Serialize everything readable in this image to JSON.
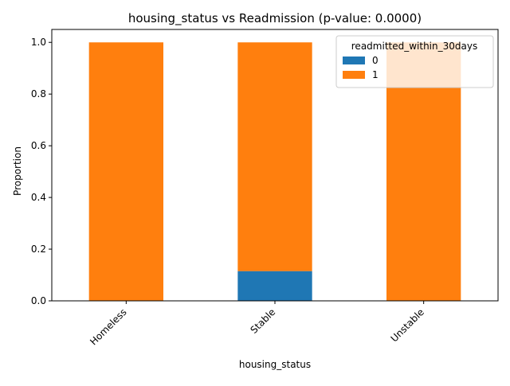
{
  "chart_data": {
    "type": "bar",
    "stacked": true,
    "title": "housing_status vs Readmission (p-value: 0.0000)",
    "xlabel": "housing_status",
    "ylabel": "Proportion",
    "categories": [
      "Homeless",
      "Stable",
      "Unstable"
    ],
    "series": [
      {
        "name": "0",
        "values": [
          0.0,
          0.115,
          0.0
        ],
        "color": "#1f77b4"
      },
      {
        "name": "1",
        "values": [
          1.0,
          0.885,
          1.0
        ],
        "color": "#ff7f0e"
      }
    ],
    "ylim": [
      0,
      1.05
    ],
    "yticks": [
      "0.0",
      "0.2",
      "0.4",
      "0.6",
      "0.8",
      "1.0"
    ],
    "grid": false,
    "legend": {
      "title": "readmitted_within_30days",
      "placement": "top-right"
    }
  }
}
